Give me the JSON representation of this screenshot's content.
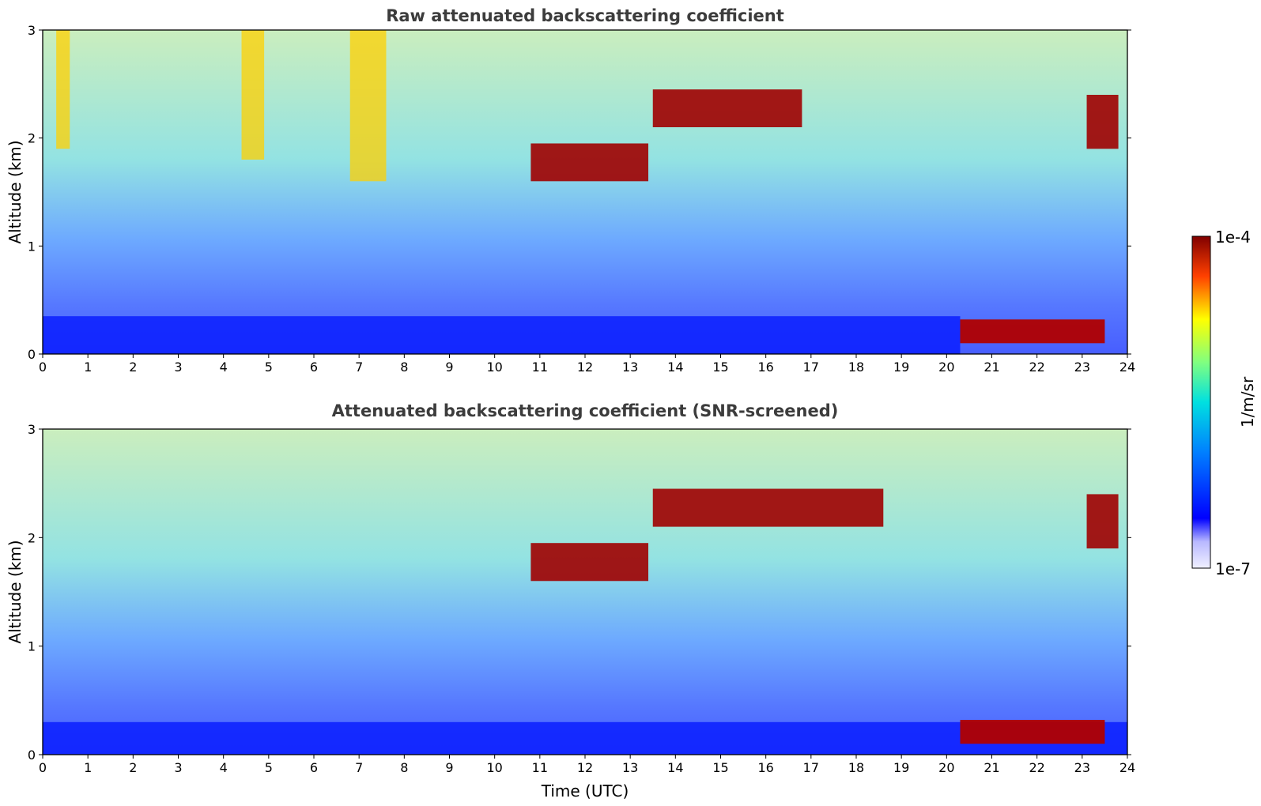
{
  "chart_data": [
    {
      "type": "heatmap",
      "title": "Raw attenuated backscattering coefficient",
      "xlabel": "",
      "ylabel": "Altitude (km)",
      "xlim": [
        0,
        24
      ],
      "ylim": [
        0,
        3
      ],
      "x_ticks": [
        "0",
        "1",
        "2",
        "3",
        "4",
        "5",
        "6",
        "7",
        "8",
        "9",
        "10",
        "11",
        "12",
        "13",
        "14",
        "15",
        "16",
        "17",
        "18",
        "19",
        "20",
        "21",
        "22",
        "23",
        "24"
      ],
      "y_ticks": [
        "0",
        "1",
        "2",
        "3"
      ],
      "features": [
        {
          "kind": "boundary_layer",
          "x": [
            0,
            20.3
          ],
          "y": [
            0,
            0.35
          ]
        },
        {
          "kind": "cloud_layer",
          "x": [
            10.8,
            13.4
          ],
          "y": [
            1.6,
            1.95
          ]
        },
        {
          "kind": "cloud_layer",
          "x": [
            13.5,
            16.8
          ],
          "y": [
            2.1,
            2.45
          ]
        },
        {
          "kind": "low_cloud",
          "x": [
            20.3,
            23.5
          ],
          "y": [
            0.1,
            0.32
          ]
        },
        {
          "kind": "cloud_layer",
          "x": [
            23.1,
            23.8
          ],
          "y": [
            1.9,
            2.4
          ]
        },
        {
          "kind": "fall_streak",
          "x": [
            4.4,
            4.9
          ],
          "y": [
            1.8,
            3.0
          ]
        },
        {
          "kind": "fall_streak",
          "x": [
            6.8,
            7.6
          ],
          "y": [
            1.6,
            3.0
          ]
        },
        {
          "kind": "fall_streak",
          "x": [
            0.3,
            0.6
          ],
          "y": [
            1.9,
            3.0
          ]
        }
      ]
    },
    {
      "type": "heatmap",
      "title": "Attenuated backscattering coefficient (SNR-screened)",
      "xlabel": "Time (UTC)",
      "ylabel": "Altitude (km)",
      "xlim": [
        0,
        24
      ],
      "ylim": [
        0,
        3
      ],
      "x_ticks": [
        "0",
        "1",
        "2",
        "3",
        "4",
        "5",
        "6",
        "7",
        "8",
        "9",
        "10",
        "11",
        "12",
        "13",
        "14",
        "15",
        "16",
        "17",
        "18",
        "19",
        "20",
        "21",
        "22",
        "23",
        "24"
      ],
      "y_ticks": [
        "0",
        "1",
        "2",
        "3"
      ],
      "features": [
        {
          "kind": "boundary_layer",
          "x": [
            0,
            24
          ],
          "y": [
            0,
            0.3
          ]
        },
        {
          "kind": "cloud_layer",
          "x": [
            10.8,
            13.4
          ],
          "y": [
            1.6,
            1.95
          ]
        },
        {
          "kind": "cloud_layer",
          "x": [
            13.5,
            18.6
          ],
          "y": [
            2.1,
            2.45
          ]
        },
        {
          "kind": "low_cloud",
          "x": [
            20.3,
            23.5
          ],
          "y": [
            0.1,
            0.32
          ]
        },
        {
          "kind": "cloud_layer",
          "x": [
            23.1,
            23.8
          ],
          "y": [
            1.9,
            2.4
          ]
        }
      ]
    }
  ],
  "colorbar": {
    "label": "1/m/sr",
    "min_label": "1e-7",
    "max_label": "1e-4",
    "scale": "log",
    "colormap": "jet"
  }
}
